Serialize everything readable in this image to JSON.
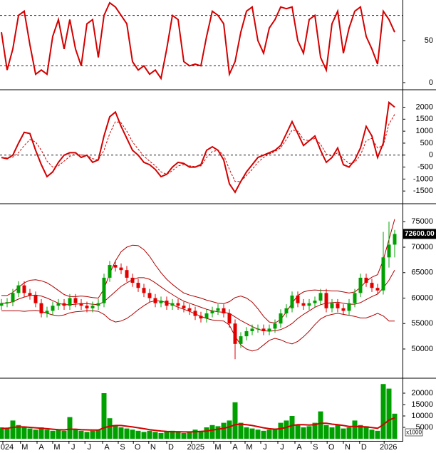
{
  "chart_data": [
    {
      "type": "line",
      "xlim": [
        -0.25,
        70.375
      ],
      "ylim": [
        0,
        100
      ],
      "yticks": [
        0,
        50
      ],
      "levels": [
        20,
        80
      ],
      "series": [
        {
          "color": "#d40000",
          "values": [
            60,
            15,
            40,
            80,
            85,
            45,
            10,
            15,
            10,
            55,
            75,
            40,
            75,
            40,
            20,
            70,
            75,
            30,
            80,
            95,
            90,
            80,
            70,
            25,
            15,
            20,
            10,
            15,
            5,
            40,
            80,
            75,
            25,
            20,
            22,
            20,
            55,
            85,
            80,
            70,
            10,
            25,
            60,
            85,
            90,
            50,
            35,
            65,
            75,
            90,
            88,
            90,
            50,
            35,
            75,
            80,
            30,
            15,
            70,
            85,
            35,
            65,
            85,
            90,
            55,
            40,
            22,
            85,
            75,
            60
          ]
        }
      ]
    },
    {
      "type": "line",
      "xlim": [
        -0.25,
        70.375
      ],
      "ylim": [
        -2000,
        2700
      ],
      "yticks": [
        -1500,
        -1000,
        -500,
        0,
        500,
        1000,
        1500,
        2000
      ],
      "levels": [
        0
      ],
      "series": [
        {
          "color": "#d40000",
          "values": [
            -100,
            -150,
            0,
            500,
            950,
            900,
            200,
            -400,
            -900,
            -700,
            -300,
            0,
            100,
            100,
            -100,
            0,
            -300,
            -200,
            800,
            1600,
            1800,
            1200,
            700,
            200,
            0,
            -300,
            -400,
            -600,
            -900,
            -800,
            -500,
            -300,
            -350,
            -500,
            -500,
            -400,
            200,
            350,
            200,
            -200,
            -1200,
            -1550,
            -1100,
            -700,
            -400,
            -100,
            0,
            100,
            200,
            400,
            900,
            1400,
            900,
            400,
            600,
            800,
            200,
            -300,
            -100,
            300,
            -400,
            -500,
            -200,
            300,
            1200,
            800,
            -100,
            500,
            2200,
            2000
          ]
        },
        {
          "color": "#d40000",
          "dashed": true,
          "values": [
            -100,
            -120,
            -80,
            100,
            400,
            650,
            550,
            200,
            -250,
            -500,
            -450,
            -250,
            -50,
            50,
            0,
            0,
            -150,
            -200,
            200,
            900,
            1400,
            1350,
            1000,
            550,
            250,
            -50,
            -250,
            -450,
            -700,
            -800,
            -650,
            -450,
            -400,
            -450,
            -480,
            -450,
            -100,
            150,
            200,
            0,
            -600,
            -1100,
            -1100,
            -850,
            -600,
            -300,
            -100,
            50,
            150,
            300,
            650,
            1050,
            1000,
            650,
            600,
            700,
            450,
            50,
            -50,
            100,
            -150,
            -350,
            -300,
            0,
            600,
            700,
            300,
            400,
            1300,
            1700
          ]
        }
      ]
    },
    {
      "type": "candlestick",
      "xlim": [
        -0.25,
        70.375
      ],
      "ylim": [
        44400,
        78400
      ],
      "yticks": [
        50000,
        55000,
        60000,
        65000,
        70000,
        75000
      ],
      "up_color": "#00a000",
      "down_color": "#e00000",
      "open": [
        58500,
        59000,
        59200,
        61000,
        62500,
        61000,
        60500,
        59000,
        57000,
        57500,
        58500,
        59000,
        58500,
        60000,
        59000,
        58500,
        58000,
        58500,
        59000,
        64000,
        66500,
        66000,
        65500,
        64000,
        63000,
        62000,
        61000,
        60000,
        59000,
        59500,
        58500,
        59000,
        58500,
        58000,
        57500,
        56500,
        56000,
        57000,
        57500,
        58000,
        57000,
        55000,
        51000,
        52500,
        53500,
        54000,
        54000,
        53500,
        54000,
        55000,
        57000,
        58000,
        60500,
        59000,
        58500,
        59000,
        59500,
        61000,
        58000,
        59000,
        58000,
        57500,
        59000,
        61000,
        64000,
        63000,
        62000,
        61500,
        68000,
        70500
      ],
      "high": [
        59800,
        60000,
        61800,
        63300,
        63300,
        61800,
        61300,
        59800,
        58300,
        59300,
        59800,
        59800,
        60800,
        60800,
        59800,
        59300,
        59300,
        59800,
        64800,
        67300,
        67300,
        66800,
        66300,
        64800,
        63800,
        62800,
        61800,
        60800,
        60300,
        60300,
        59800,
        59800,
        59300,
        58800,
        58300,
        57300,
        57800,
        58300,
        58800,
        58800,
        57800,
        55800,
        53300,
        54300,
        54800,
        54800,
        54800,
        54800,
        55800,
        57800,
        58800,
        61300,
        61300,
        59800,
        59800,
        60300,
        61800,
        61800,
        59800,
        59800,
        58800,
        59800,
        61800,
        64800,
        64800,
        63800,
        62800,
        73000,
        75000,
        73400
      ],
      "low": [
        57700,
        58200,
        58400,
        60200,
        60200,
        59700,
        58200,
        56200,
        56200,
        56700,
        57700,
        57700,
        57700,
        58200,
        57700,
        57200,
        57200,
        57700,
        58200,
        63200,
        65200,
        64700,
        63200,
        62200,
        61200,
        60200,
        59200,
        58200,
        58200,
        57700,
        57700,
        57700,
        57200,
        56700,
        55700,
        55200,
        55200,
        56200,
        56700,
        56200,
        54200,
        48000,
        50200,
        51700,
        52700,
        53200,
        52700,
        52700,
        53200,
        54200,
        56200,
        57200,
        58200,
        57700,
        57700,
        58200,
        58700,
        57200,
        57200,
        57200,
        56700,
        56700,
        58200,
        60200,
        62200,
        61200,
        60700,
        60700,
        66000,
        68000
      ],
      "close": [
        59000,
        59200,
        61000,
        62500,
        61000,
        60500,
        59000,
        57000,
        57500,
        58500,
        59000,
        58500,
        60000,
        59000,
        58500,
        58000,
        58500,
        59000,
        64000,
        66500,
        66000,
        65500,
        64000,
        63000,
        62000,
        61000,
        60000,
        59000,
        59500,
        58500,
        59000,
        58500,
        58000,
        57500,
        56500,
        56000,
        57000,
        57500,
        58000,
        57000,
        55000,
        51000,
        52500,
        53500,
        54000,
        54000,
        53500,
        54000,
        55000,
        57000,
        58000,
        60500,
        59000,
        58500,
        59000,
        59500,
        61000,
        58000,
        59000,
        58000,
        57500,
        59000,
        61000,
        64000,
        63000,
        62000,
        61500,
        68000,
        70500,
        72600
      ],
      "bands": [
        {
          "color": "#b00000",
          "values": [
            60500,
            60500,
            61100,
            62100,
            63000,
            63500,
            63600,
            63400,
            63000,
            62300,
            61500,
            60700,
            60300,
            60300,
            60400,
            60300,
            60100,
            60000,
            61800,
            64800,
            67300,
            69100,
            70000,
            70400,
            70300,
            69500,
            68200,
            66500,
            65000,
            63700,
            62700,
            61800,
            61000,
            60600,
            60300,
            60000,
            59600,
            59300,
            59000,
            58900,
            59300,
            60100,
            60400,
            60000,
            59200,
            57900,
            56400,
            55300,
            55100,
            55800,
            57300,
            59000,
            60500,
            61200,
            61500,
            61600,
            61500,
            61500,
            61400,
            61400,
            61200,
            61000,
            61200,
            62100,
            63300,
            64100,
            64600,
            67500,
            71500,
            75500
          ]
        },
        {
          "color": "#b00000",
          "values": [
            59000,
            59000,
            59300,
            59800,
            60200,
            60500,
            60600,
            60400,
            60000,
            59500,
            59000,
            58700,
            58700,
            58800,
            58900,
            58900,
            58800,
            58700,
            59300,
            60300,
            61300,
            62300,
            63000,
            63600,
            64000,
            64000,
            63700,
            63000,
            62200,
            61400,
            60700,
            60000,
            59400,
            59000,
            58600,
            58200,
            57800,
            57500,
            57300,
            57200,
            57000,
            56300,
            55600,
            55000,
            54400,
            53900,
            53600,
            53500,
            53600,
            53800,
            54300,
            55000,
            56000,
            56800,
            57500,
            58200,
            58700,
            59000,
            59100,
            59200,
            59000,
            58800,
            58800,
            59100,
            59700,
            60300,
            60800,
            62000,
            63500,
            65500
          ]
        },
        {
          "color": "#b00000",
          "values": [
            57500,
            57500,
            57500,
            57500,
            57400,
            57500,
            57600,
            57400,
            57000,
            56700,
            56500,
            56700,
            57100,
            57300,
            57400,
            57500,
            57500,
            57400,
            56800,
            55800,
            55300,
            55500,
            56000,
            56800,
            57700,
            58500,
            59200,
            59500,
            59400,
            59100,
            58700,
            58200,
            57800,
            57400,
            56900,
            56400,
            56000,
            55700,
            55600,
            55500,
            54700,
            52500,
            50800,
            50000,
            49600,
            49900,
            50800,
            51700,
            52100,
            51800,
            51300,
            51000,
            51500,
            52400,
            53500,
            54800,
            55900,
            56500,
            56800,
            57000,
            56800,
            56600,
            56400,
            56100,
            56100,
            56500,
            57000,
            56500,
            55500,
            55500
          ]
        }
      ],
      "last": {
        "value": 72600,
        "label": "72600.00"
      }
    },
    {
      "type": "bar",
      "xlim": [
        -0.25,
        70.375
      ],
      "ylim": [
        0,
        26250
      ],
      "yticks": [
        5000,
        10000,
        15000,
        20000
      ],
      "unit_label": "x1000",
      "color": "#00a000",
      "values": [
        5000,
        4500,
        8000,
        6000,
        5000,
        4500,
        4000,
        5000,
        4000,
        3500,
        4000,
        3500,
        9500,
        4000,
        3500,
        3000,
        3500,
        4000,
        20000,
        9000,
        6000,
        5000,
        4500,
        4000,
        3500,
        3000,
        3500,
        3000,
        2500,
        3000,
        3500,
        3000,
        2500,
        3000,
        4000,
        3500,
        5000,
        6000,
        5500,
        7000,
        8000,
        16000,
        7000,
        5000,
        4500,
        4000,
        3500,
        4000,
        4500,
        7000,
        8000,
        10000,
        6000,
        5000,
        5500,
        7000,
        12000,
        6000,
        5000,
        6000,
        4500,
        5000,
        8000,
        6000,
        5500,
        4000,
        3500,
        24000,
        22000,
        11000
      ],
      "series": [
        {
          "color": "#d40000",
          "values": [
            4500,
            4600,
            5000,
            5200,
            5200,
            5000,
            4800,
            4600,
            4400,
            4200,
            4000,
            3900,
            4200,
            4200,
            4000,
            3900,
            3800,
            3800,
            4800,
            5500,
            5800,
            5800,
            5500,
            5200,
            4800,
            4400,
            4000,
            3700,
            3400,
            3200,
            3100,
            3100,
            3000,
            3000,
            3100,
            3200,
            3400,
            3800,
            4200,
            4600,
            5200,
            6200,
            6400,
            6200,
            5800,
            5300,
            4800,
            4400,
            4200,
            4400,
            5000,
            5800,
            6200,
            6200,
            6000,
            6200,
            6800,
            6800,
            6400,
            6200,
            5800,
            5400,
            5400,
            5300,
            5200,
            4900,
            4600,
            6200,
            8200,
            9200
          ]
        }
      ],
      "xticks": [
        {
          "value": 1,
          "label": "024"
        },
        {
          "value": 4.1,
          "label": "M"
        },
        {
          "value": 7,
          "label": "A"
        },
        {
          "value": 9.75,
          "label": "M"
        },
        {
          "value": 12.6,
          "label": "J"
        },
        {
          "value": 15.4,
          "label": "J"
        },
        {
          "value": 18.5,
          "label": "A"
        },
        {
          "value": 21.25,
          "label": "S"
        },
        {
          "value": 23.9,
          "label": "O"
        },
        {
          "value": 26.6,
          "label": "N"
        },
        {
          "value": 29.75,
          "label": "D"
        },
        {
          "value": 34.1,
          "label": "2025"
        },
        {
          "value": 38,
          "label": "M"
        },
        {
          "value": 41,
          "label": "A"
        },
        {
          "value": 43.5,
          "label": "M"
        },
        {
          "value": 46.25,
          "label": "J"
        },
        {
          "value": 49.25,
          "label": "J"
        },
        {
          "value": 52.25,
          "label": "A"
        },
        {
          "value": 55.1,
          "label": "S"
        },
        {
          "value": 57.9,
          "label": "O"
        },
        {
          "value": 60.75,
          "label": "N"
        },
        {
          "value": 63.6,
          "label": "D"
        },
        {
          "value": 67.9,
          "label": "2026"
        }
      ]
    }
  ]
}
